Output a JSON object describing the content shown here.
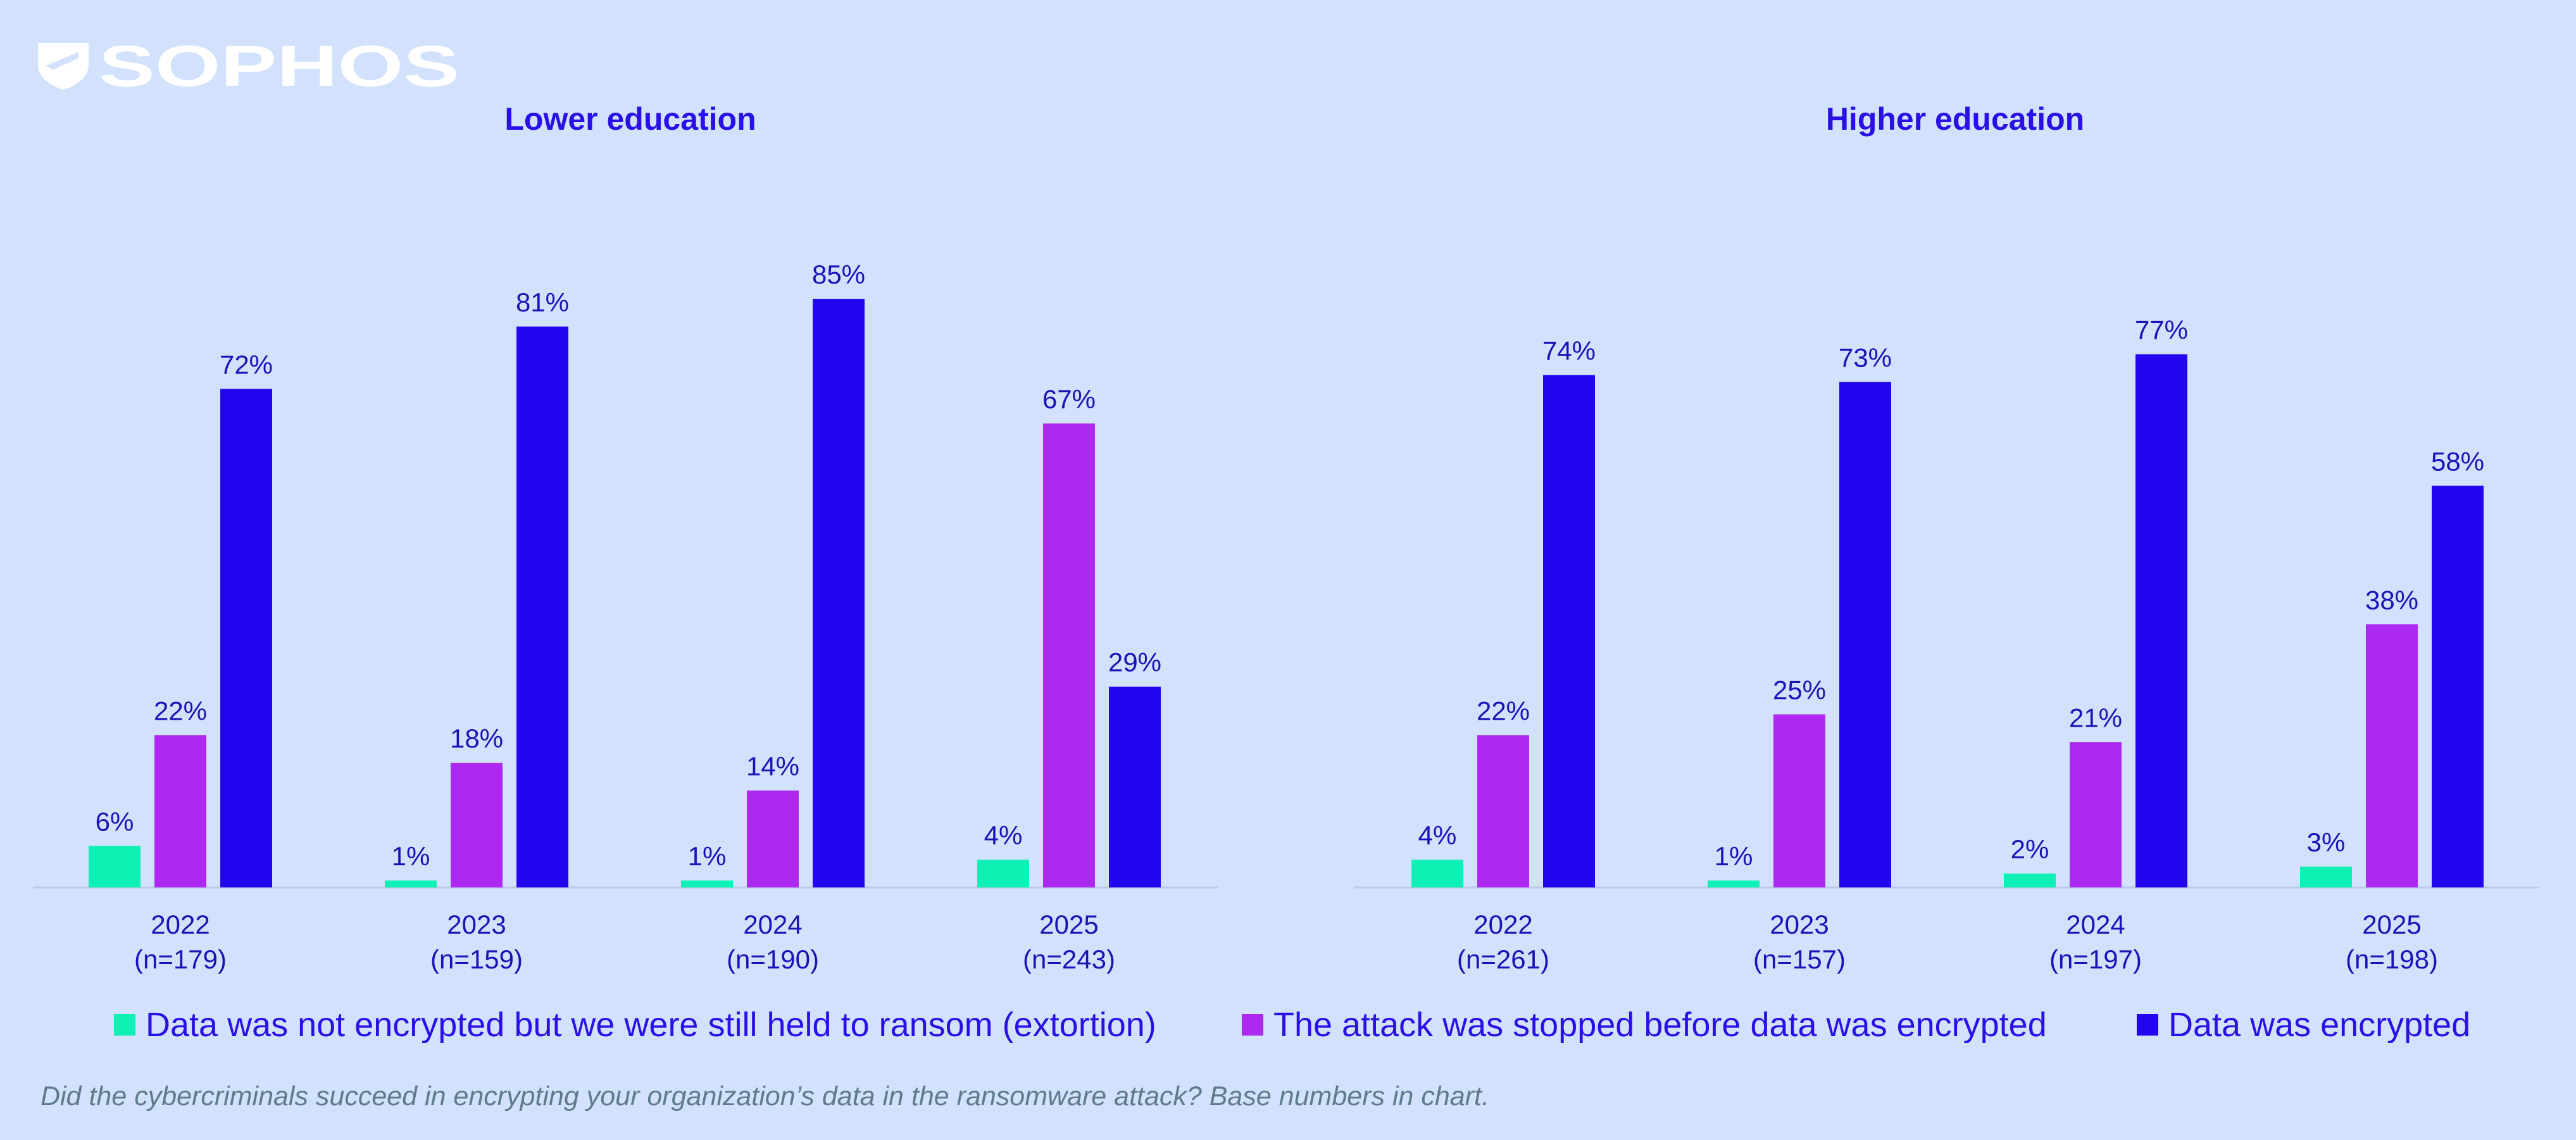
{
  "brand": {
    "name": "SOPHOS"
  },
  "colors": {
    "background": "#d2e2fc",
    "extortion": "#0ef0b4",
    "stopped": "#ad28f0",
    "encrypted": "#2305f0",
    "title": "#2a10e6",
    "label": "#1a14b8",
    "footnote": "#5f7a8c"
  },
  "legend": [
    {
      "label": "Data was not encrypted but we were still held to ransom (extortion)",
      "color": "#0ef0b4"
    },
    {
      "label": "The attack was stopped before data was encrypted",
      "color": "#ad28f0"
    },
    {
      "label": "Data was encrypted",
      "color": "#2305f0"
    }
  ],
  "footnote": "Did the cybercriminals succeed in encrypting your organization’s data in the ransomware attack?  Base numbers in chart.",
  "chart_data": [
    {
      "type": "bar",
      "title": "Lower education",
      "categories": [
        "2022",
        "2023",
        "2024",
        "2025"
      ],
      "bases": [
        "(n=179)",
        "(n=159)",
        "(n=190)",
        "(n=243)"
      ],
      "series": [
        {
          "name": "Data was not encrypted but we were still held to ransom (extortion)",
          "values": [
            6,
            1,
            1,
            4
          ]
        },
        {
          "name": "The attack was stopped before data was encrypted",
          "values": [
            22,
            18,
            14,
            67
          ]
        },
        {
          "name": "Data was encrypted",
          "values": [
            72,
            81,
            85,
            29
          ]
        }
      ],
      "unit": "%",
      "ylim": [
        0,
        100
      ]
    },
    {
      "type": "bar",
      "title": "Higher education",
      "categories": [
        "2022",
        "2023",
        "2024",
        "2025"
      ],
      "bases": [
        "(n=261)",
        "(n=157)",
        "(n=197)",
        "(n=198)"
      ],
      "series": [
        {
          "name": "Data was not encrypted but we were still held to ransom (extortion)",
          "values": [
            4,
            1,
            2,
            3
          ]
        },
        {
          "name": "The attack was stopped before data was encrypted",
          "values": [
            22,
            25,
            21,
            38
          ]
        },
        {
          "name": "Data was encrypted",
          "values": [
            74,
            73,
            77,
            58
          ]
        }
      ],
      "unit": "%",
      "ylim": [
        0,
        100
      ]
    }
  ]
}
